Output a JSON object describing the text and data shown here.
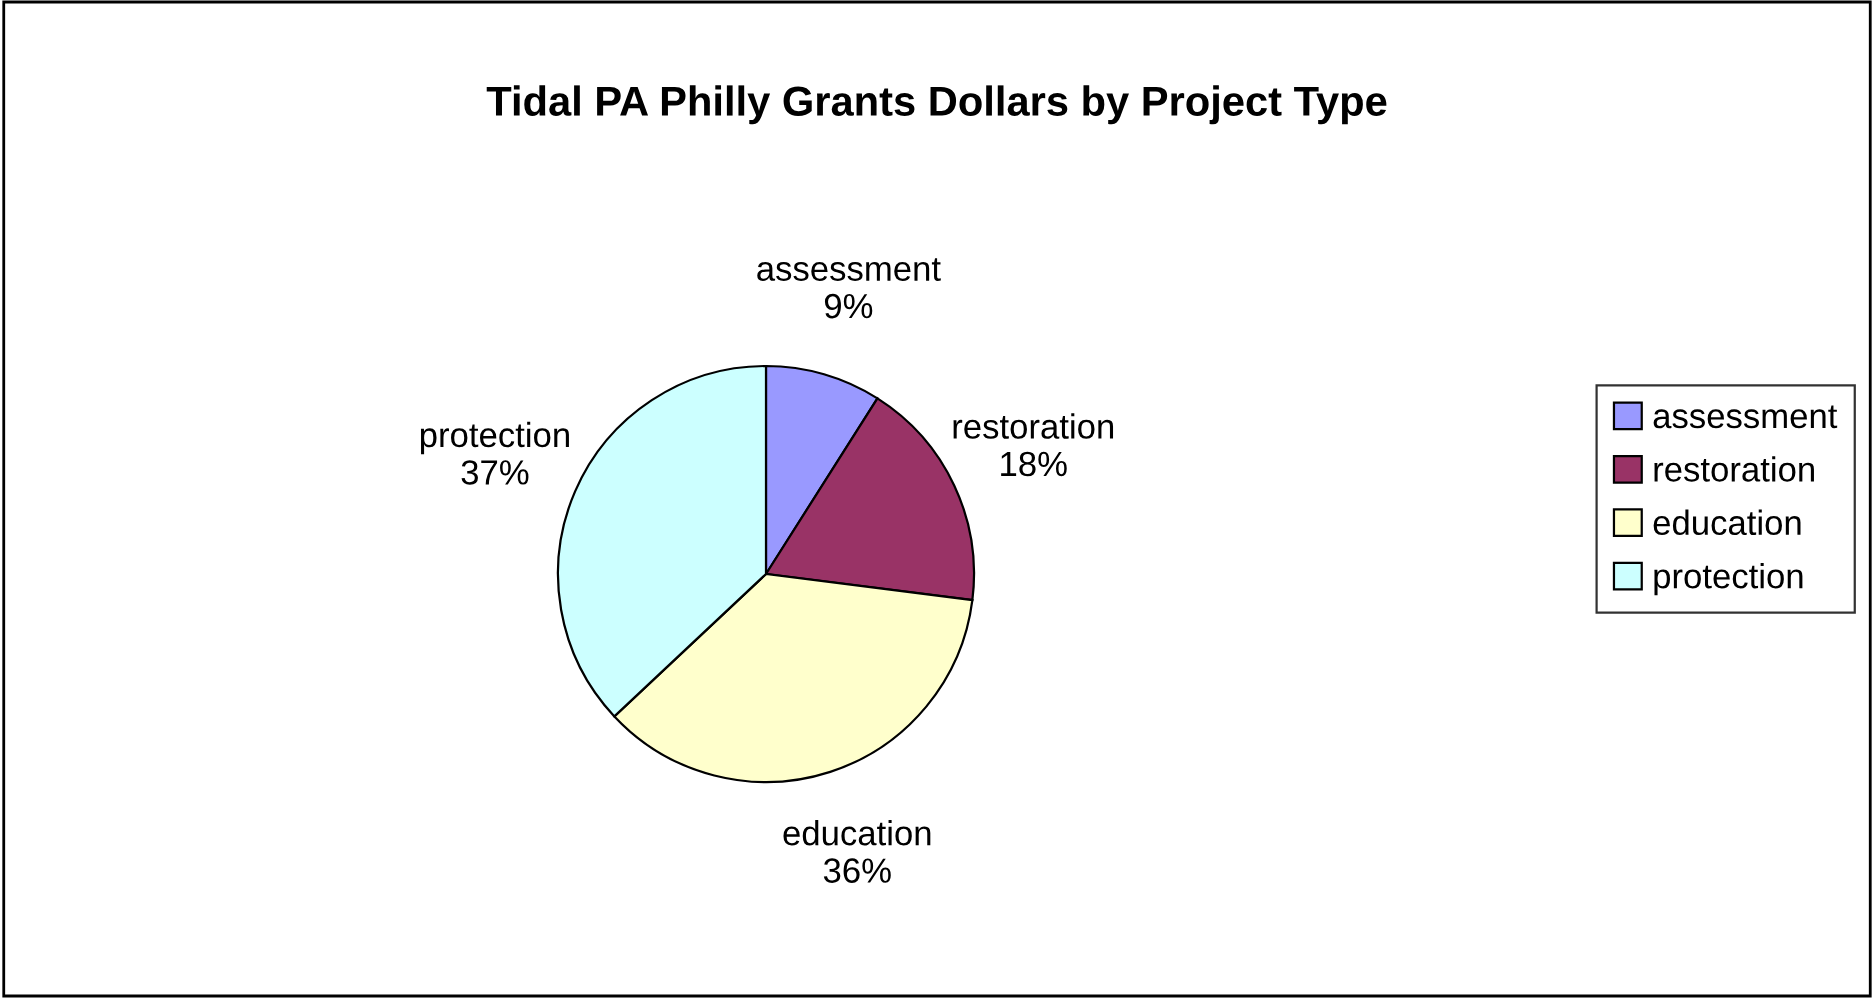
{
  "chart_data": {
    "type": "pie",
    "title": "Tidal PA Philly Grants Dollars by Project Type",
    "categories": [
      "assessment",
      "restoration",
      "education",
      "protection"
    ],
    "values": [
      9,
      18,
      36,
      37
    ],
    "value_labels": [
      "9%",
      "18%",
      "36%",
      "37%"
    ],
    "colors": [
      "#9999ff",
      "#993366",
      "#ffffcc",
      "#ccffff"
    ],
    "legend": "right"
  }
}
